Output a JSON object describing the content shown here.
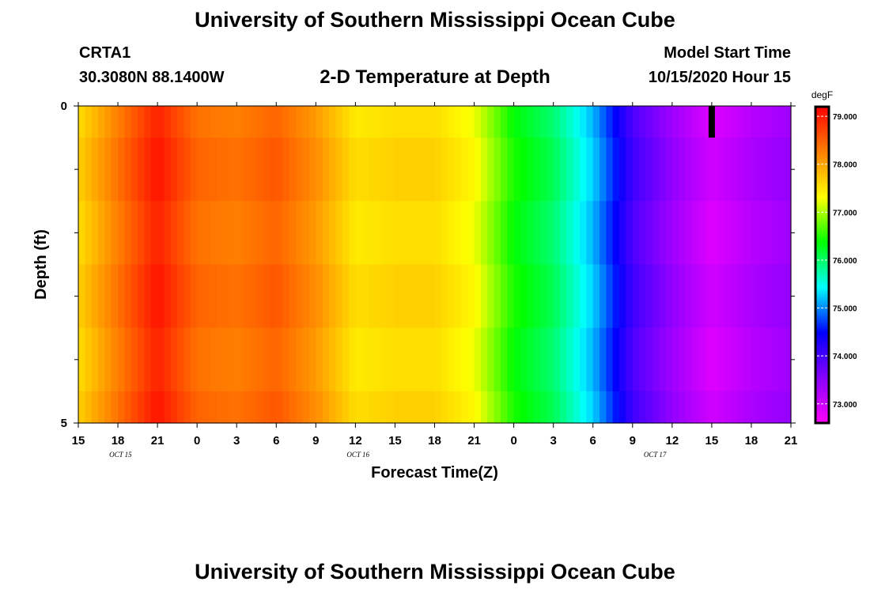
{
  "header": {
    "title": "University of Southern Mississippi Ocean Cube",
    "station_id": "CRTA1",
    "coordinates": "30.3080N 88.1400W",
    "plot_title": "2-D Temperature at Depth",
    "start_label": "Model Start Time",
    "start_value": "10/15/2020 Hour 15"
  },
  "footer": {
    "title": "University of Southern Mississippi Ocean Cube"
  },
  "chart_data": {
    "type": "heatmap",
    "title": "2-D Temperature at Depth",
    "xlabel": "Forecast Time(Z)",
    "ylabel": "Depth (ft)",
    "x_start": "10/15/2020 15Z",
    "x_range_hours": [
      0,
      54
    ],
    "x_tick_labels": [
      "15",
      "18",
      "21",
      "0",
      "3",
      "6",
      "9",
      "12",
      "15",
      "18",
      "21",
      "0",
      "3",
      "6",
      "9",
      "12",
      "15",
      "18",
      "21"
    ],
    "x_date_labels": [
      {
        "label": "OCT 15",
        "hour": 3.2
      },
      {
        "label": "OCT 16",
        "hour": 21.2
      },
      {
        "label": "OCT 17",
        "hour": 43.7
      }
    ],
    "y_range": [
      0,
      5
    ],
    "y_tick_labels": [
      {
        "value": 0,
        "label": "0"
      },
      {
        "value": 5,
        "label": "5"
      }
    ],
    "y_minor_ticks": [
      1,
      2,
      3,
      4
    ],
    "depth_levels_ft": [
      0,
      0.5,
      1.5,
      2.5,
      3.5,
      4.5,
      5
    ],
    "colorbar": {
      "unit": "degF",
      "range": [
        72.6,
        79.2
      ],
      "tick_values": [
        79.0,
        78.0,
        77.0,
        76.0,
        75.0,
        74.0,
        73.0
      ],
      "tick_labels": [
        "79.000",
        "78.000",
        "77.000",
        "76.000",
        "75.000",
        "74.000",
        "73.000"
      ],
      "colors": [
        "#ff00ff",
        "#8800ff",
        "#0000ff",
        "#00ffff",
        "#00ff00",
        "#ffff00",
        "#ff8000",
        "#ff0000"
      ]
    },
    "current_time_marker_hour": 48,
    "time_hours": [
      0,
      3,
      6,
      9,
      12,
      15,
      18,
      21,
      24,
      27,
      30,
      33,
      36,
      39,
      42,
      45,
      48,
      51,
      54
    ],
    "temperature_degF": [
      77.6,
      78.3,
      79.0,
      78.4,
      78.3,
      78.5,
      78.1,
      77.5,
      77.6,
      77.6,
      77.3,
      76.4,
      76.0,
      75.2,
      74.0,
      73.4,
      72.9,
      73.2,
      73.4
    ]
  }
}
